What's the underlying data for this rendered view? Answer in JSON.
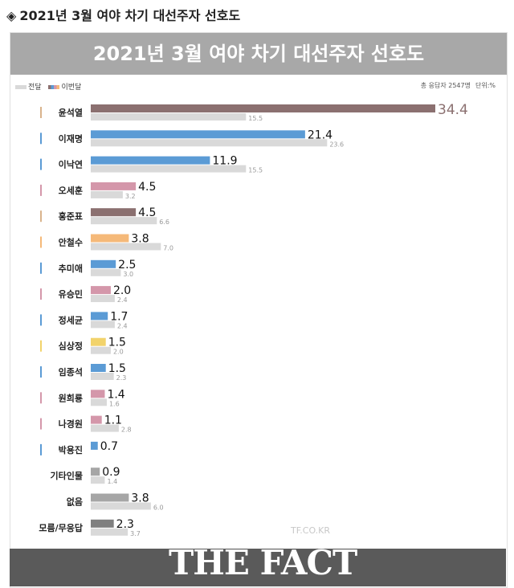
{
  "heading": {
    "icon": "diamond-icon",
    "text": "2021년 3월 여야 차기 대선주자 선호도"
  },
  "banner_title": "2021년 3월 여야 차기 대선주자 선호도",
  "legend": {
    "prev_label": "전달",
    "cur_label": "이번달"
  },
  "meta": {
    "respondents": "총 응답자 2547명",
    "unit": "단위:%"
  },
  "watermark": "TF.CO.KR",
  "logo": {
    "text": "THE FACT"
  },
  "colors": {
    "prev_bar": "#d9d9d9",
    "label_text": "#222222",
    "prev_label_text": "#999999"
  },
  "chart_data": {
    "type": "bar",
    "orientation": "horizontal",
    "title": "2021년 3월 여야 차기 대선주자 선호도",
    "categories": [
      "윤석열",
      "이재명",
      "이낙연",
      "오세훈",
      "홍준표",
      "안철수",
      "추미애",
      "유승민",
      "정세균",
      "심상정",
      "임종석",
      "원희룡",
      "나경원",
      "박용진",
      "기타인물",
      "없음",
      "모름/무응답"
    ],
    "series": [
      {
        "name": "이번달",
        "values": [
          34.4,
          21.4,
          11.9,
          4.5,
          4.5,
          3.8,
          2.5,
          2.0,
          1.7,
          1.5,
          1.5,
          1.4,
          1.1,
          0.7,
          0.9,
          3.8,
          2.3
        ]
      },
      {
        "name": "전달",
        "values": [
          15.5,
          23.6,
          15.5,
          3.2,
          6.6,
          7.0,
          3.0,
          2.4,
          2.4,
          2.0,
          2.3,
          1.6,
          2.8,
          null,
          1.4,
          6.0,
          3.7
        ]
      }
    ],
    "value_labels_current": [
      "34.4",
      "21.4",
      "11.9",
      "4.5",
      "4.5",
      "3.8",
      "2.5",
      "2.0",
      "1.7",
      "1.5",
      "1.5",
      "1.4",
      "1.1",
      "0.7",
      "0.9",
      "3.8",
      "2.3"
    ],
    "value_labels_prev": [
      "15.5",
      "23.6",
      "15.5",
      "3.2",
      "6.6",
      "7.0",
      "3.0",
      "2.4",
      "2.4",
      "2.0",
      "2.3",
      "1.6",
      "2.8",
      "",
      "1.4",
      "6.0",
      "3.7"
    ],
    "bar_colors": [
      "#8b7070",
      "#5b9bd5",
      "#5b9bd5",
      "#d497aa",
      "#8b7070",
      "#f5b979",
      "#5b9bd5",
      "#d497aa",
      "#5b9bd5",
      "#f2d36b",
      "#5b9bd5",
      "#d497aa",
      "#d497aa",
      "#5b9bd5",
      "#a6a6a6",
      "#a6a6a6",
      "#7f7f7f"
    ],
    "marker_colors": [
      "#d9b38c",
      "#5b9bd5",
      "#5b9bd5",
      "#d497aa",
      "#d9b38c",
      "#f5b979",
      "#5b9bd5",
      "#d497aa",
      "#5b9bd5",
      "#f2d36b",
      "#5b9bd5",
      "#d497aa",
      "#d497aa",
      "#5b9bd5",
      "",
      "",
      " "
    ],
    "xlim": [
      0,
      34.4
    ],
    "grid": false,
    "legend_position": "top-left"
  }
}
